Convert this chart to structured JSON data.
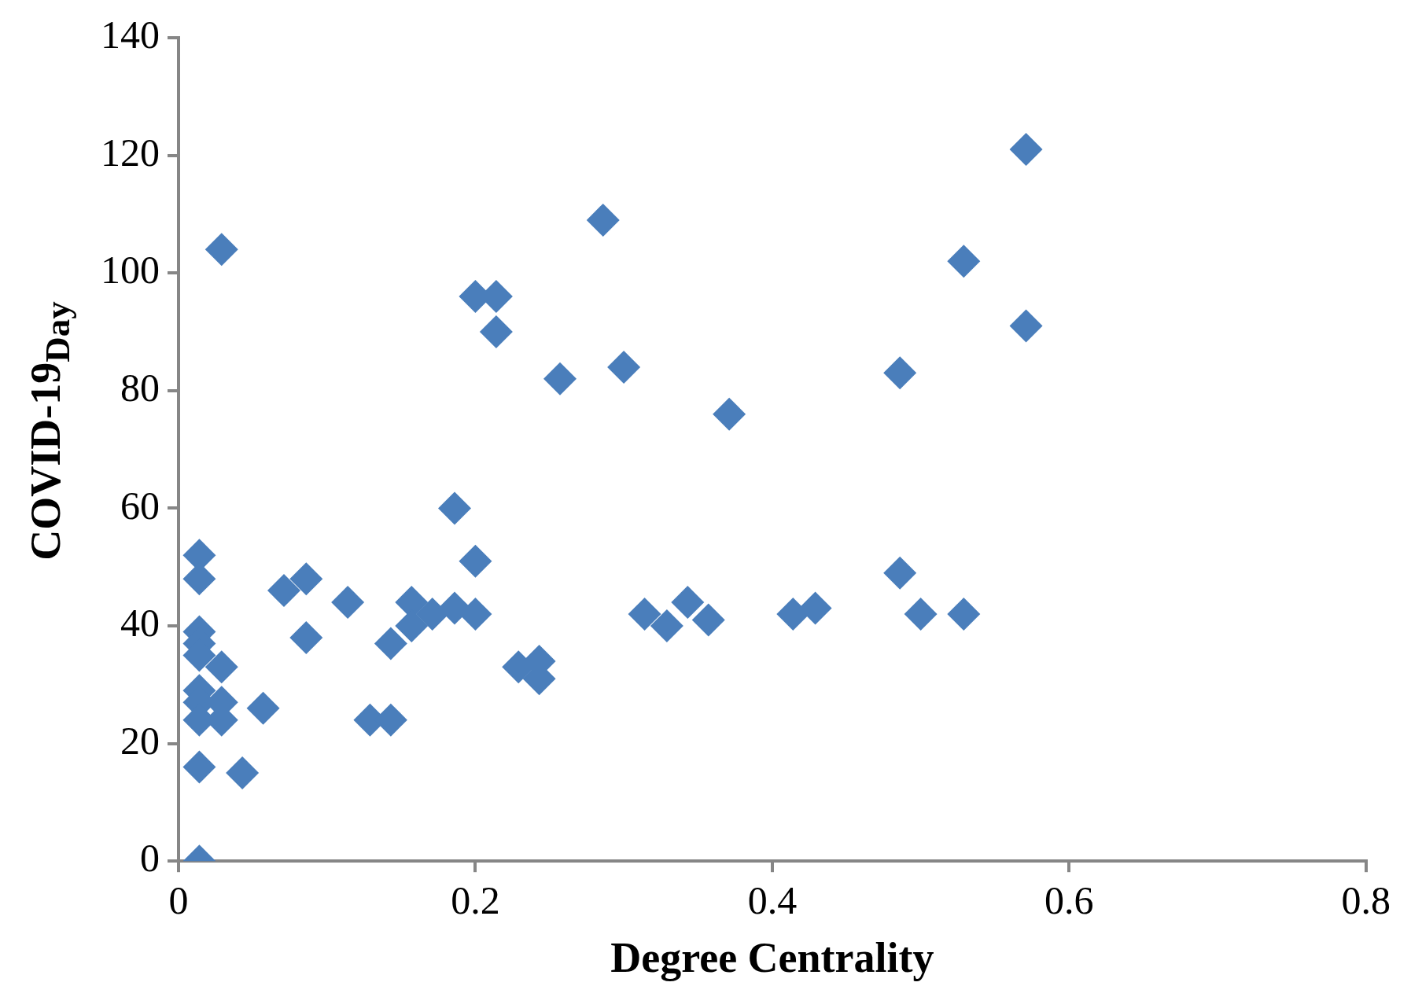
{
  "chart_data": {
    "type": "scatter",
    "xlabel": "Degree Centrality",
    "ylabel": "COVID-19$_{Day}$",
    "xlim": [
      0,
      0.8
    ],
    "xticks": [
      0,
      0.2,
      0.4,
      0.6,
      0.8
    ],
    "ylim": [
      0,
      140
    ],
    "yticks": [
      0,
      20,
      40,
      60,
      80,
      100,
      120,
      140
    ],
    "grid": false,
    "legend": false,
    "marker": "diamond",
    "series": [
      {
        "color": "#4a7ebb",
        "x": [
          0.014,
          0.014,
          0.014,
          0.014,
          0.014,
          0.014,
          0.014,
          0.014,
          0.014,
          0.014,
          0.029,
          0.029,
          0.029,
          0.029,
          0.043,
          0.057,
          0.071,
          0.086,
          0.086,
          0.114,
          0.129,
          0.143,
          0.143,
          0.157,
          0.157,
          0.171,
          0.186,
          0.186,
          0.2,
          0.2,
          0.2,
          0.214,
          0.214,
          0.229,
          0.243,
          0.243,
          0.257,
          0.286,
          0.3,
          0.314,
          0.329,
          0.343,
          0.357,
          0.371,
          0.414,
          0.429,
          0.486,
          0.486,
          0.5,
          0.529,
          0.529,
          0.571,
          0.571
        ],
        "values": [
          52,
          48,
          39,
          37,
          35,
          29,
          27,
          24,
          16,
          0,
          104,
          33,
          27,
          24,
          15,
          26,
          46,
          48,
          38,
          44,
          24,
          24,
          37,
          44,
          40,
          42,
          43,
          60,
          42,
          51,
          96,
          96,
          90,
          33,
          34,
          31,
          82,
          109,
          84,
          42,
          40,
          44,
          41,
          76,
          42,
          43,
          83,
          49,
          42,
          102,
          42,
          121,
          91
        ]
      }
    ]
  }
}
